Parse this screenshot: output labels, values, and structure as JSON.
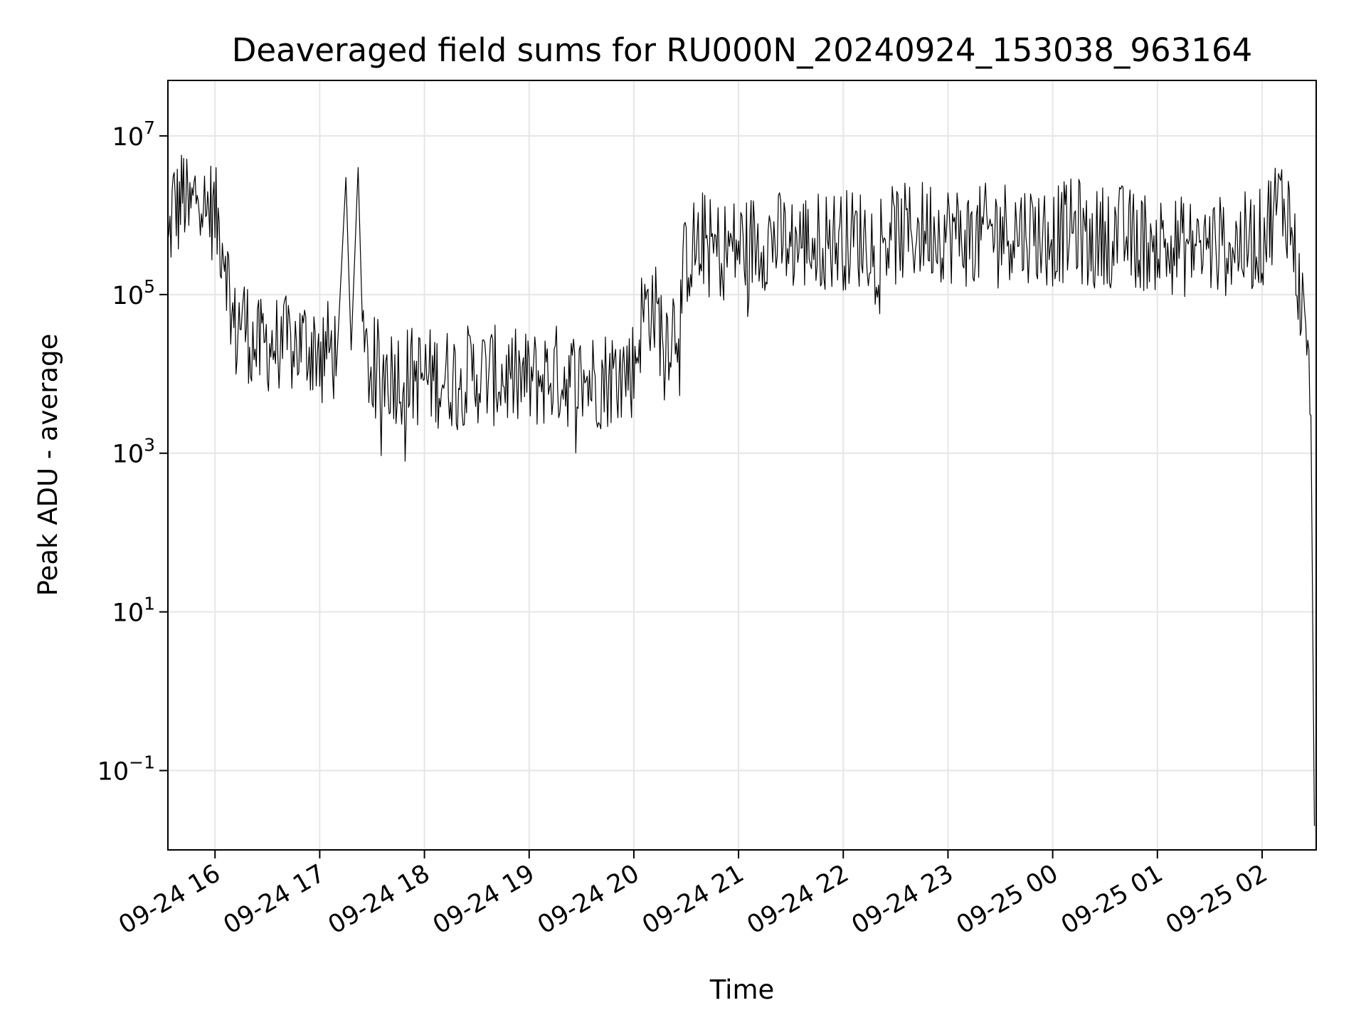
{
  "chart_data": {
    "type": "line",
    "title": "Deaveraged field sums for RU000N_20240924_153038_963164",
    "xlabel": "Time",
    "ylabel": "Peak ADU - average",
    "yscale": "log",
    "ylim": [
      0.01,
      50000000
    ],
    "xlim": [
      "2024-09-24 15:33",
      "2024-09-25 02:31"
    ],
    "grid": true,
    "line_color": "#000000",
    "x_ticks": [
      {
        "x": "2024-09-24 16:00",
        "label": "09-24 16"
      },
      {
        "x": "2024-09-24 17:00",
        "label": "09-24 17"
      },
      {
        "x": "2024-09-24 18:00",
        "label": "09-24 18"
      },
      {
        "x": "2024-09-24 19:00",
        "label": "09-24 19"
      },
      {
        "x": "2024-09-24 20:00",
        "label": "09-24 20"
      },
      {
        "x": "2024-09-24 21:00",
        "label": "09-24 21"
      },
      {
        "x": "2024-09-24 22:00",
        "label": "09-24 22"
      },
      {
        "x": "2024-09-24 23:00",
        "label": "09-24 23"
      },
      {
        "x": "2024-09-25 00:00",
        "label": "09-25 00"
      },
      {
        "x": "2024-09-25 01:00",
        "label": "09-25 01"
      },
      {
        "x": "2024-09-25 02:00",
        "label": "09-25 02"
      }
    ],
    "y_ticks": [
      {
        "value": 0.1,
        "base": "10",
        "exp": "−1"
      },
      {
        "value": 10,
        "base": "10",
        "exp": "1"
      },
      {
        "value": 1000,
        "base": "10",
        "exp": "3"
      },
      {
        "value": 100000,
        "base": "10",
        "exp": "5"
      },
      {
        "value": 10000000,
        "base": "10",
        "exp": "7"
      }
    ],
    "series": [
      {
        "x": [
          "2024-09-24 15:33",
          "2024-09-24 15:36",
          "2024-09-24 15:39",
          "2024-09-24 15:42",
          "2024-09-24 15:45",
          "2024-09-24 15:48",
          "2024-09-24 15:51",
          "2024-09-24 15:54",
          "2024-09-24 15:57",
          "2024-09-24 16:00",
          "2024-09-24 16:03",
          "2024-09-24 16:06",
          "2024-09-24 16:09",
          "2024-09-24 16:12",
          "2024-09-24 16:15",
          "2024-09-24 16:18",
          "2024-09-24 16:21",
          "2024-09-24 16:25",
          "2024-09-24 16:30",
          "2024-09-24 16:40",
          "2024-09-24 16:50",
          "2024-09-24 17:00",
          "2024-09-24 17:10",
          "2024-09-24 17:15",
          "2024-09-24 17:18",
          "2024-09-24 17:22",
          "2024-09-24 17:25",
          "2024-09-24 17:30",
          "2024-09-24 17:45",
          "2024-09-24 18:00",
          "2024-09-24 18:15",
          "2024-09-24 18:30",
          "2024-09-24 18:45",
          "2024-09-24 19:00",
          "2024-09-24 19:15",
          "2024-09-24 19:30",
          "2024-09-24 19:45",
          "2024-09-24 20:00",
          "2024-09-24 20:05",
          "2024-09-24 20:10",
          "2024-09-24 20:15",
          "2024-09-24 20:20",
          "2024-09-24 20:25",
          "2024-09-24 20:30",
          "2024-09-24 20:35",
          "2024-09-24 20:40",
          "2024-09-24 20:45",
          "2024-09-24 21:00",
          "2024-09-24 21:15",
          "2024-09-24 21:30",
          "2024-09-24 21:45",
          "2024-09-24 22:00",
          "2024-09-24 22:15",
          "2024-09-24 22:30",
          "2024-09-24 22:40",
          "2024-09-24 22:50",
          "2024-09-24 23:00",
          "2024-09-24 23:15",
          "2024-09-24 23:30",
          "2024-09-24 23:40",
          "2024-09-24 23:50",
          "2024-09-25 00:00",
          "2024-09-25 00:15",
          "2024-09-25 00:20",
          "2024-09-25 00:30",
          "2024-09-25 00:35",
          "2024-09-25 00:45",
          "2024-09-25 01:00",
          "2024-09-25 01:15",
          "2024-09-25 01:30",
          "2024-09-25 01:45",
          "2024-09-25 02:00",
          "2024-09-25 02:05",
          "2024-09-25 02:10",
          "2024-09-25 02:15",
          "2024-09-25 02:20",
          "2024-09-25 02:25",
          "2024-09-25 02:28",
          "2024-09-25 02:30"
        ],
        "y": [
          300000,
          1500000,
          1200000,
          2000000,
          900000,
          1500000,
          3000000,
          1100000,
          1300000,
          1000000,
          600000,
          400000,
          60000,
          30000,
          60000,
          40000,
          25000,
          20000,
          25000,
          22000,
          24000,
          22000,
          18000,
          3000000,
          20000,
          4000000,
          15000,
          12000,
          10000,
          9000,
          9000,
          10000,
          9000,
          8000,
          10000,
          8000,
          9000,
          12000,
          60000,
          80000,
          40000,
          35000,
          50000,
          300000,
          400000,
          500000,
          350000,
          400000,
          500000,
          450000,
          480000,
          500000,
          520000,
          550000,
          600000,
          700000,
          600000,
          500000,
          700000,
          650000,
          600000,
          550000,
          700000,
          400000,
          600000,
          650000,
          500000,
          450000,
          400000,
          400000,
          420000,
          500000,
          1000000,
          1500000,
          1200000,
          200000,
          30000,
          3000,
          0.02
        ]
      }
    ]
  }
}
